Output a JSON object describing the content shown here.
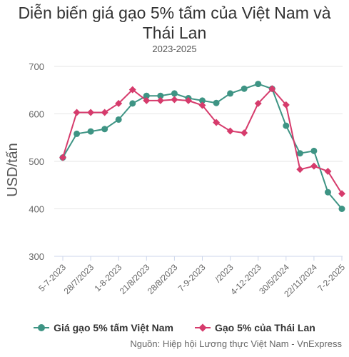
{
  "colors": {
    "series_vn": "#3e9484",
    "series_th": "#d63b6c",
    "grid": "#e6e6e6",
    "axis_text": "#666666"
  },
  "chart_data": {
    "type": "line",
    "title_line1": "Diễn biến giá gạo 5% tấm của Việt Nam và",
    "title_line2": "Thái Lan",
    "subtitle": "2023-2025",
    "xlabel": "",
    "ylabel": "USD/tấn",
    "ylim": [
      300,
      700
    ],
    "yticks": [
      300,
      400,
      500,
      600,
      700
    ],
    "grid": true,
    "legend_position": "bottom",
    "xtick_labels": [
      "5-7-2023",
      "28/7/2023",
      "1-8-2023",
      "21/8/2023",
      "28/8/2023",
      "7-9-2023",
      "/2023",
      "4-12-2023",
      "30/5/2024",
      "22/11/2024",
      "7-2-2025"
    ],
    "xtick_positions": [
      0,
      2,
      4,
      6,
      8,
      10,
      12,
      14,
      16,
      18,
      20
    ],
    "n_points": 21,
    "series": [
      {
        "name": "Giá gạo 5% tấm Việt Nam",
        "marker": "circle",
        "values": [
          508,
          558,
          563,
          568,
          588,
          622,
          638,
          638,
          643,
          633,
          628,
          623,
          643,
          653,
          663,
          653,
          575,
          517,
          522,
          435,
          400
        ]
      },
      {
        "name": "Gạo 5% của Thái Lan",
        "marker": "diamond",
        "values": [
          508,
          603,
          603,
          603,
          622,
          651,
          628,
          628,
          630,
          628,
          618,
          582,
          564,
          560,
          622,
          653,
          619,
          483,
          490,
          479,
          432
        ]
      }
    ]
  },
  "source": "Nguồn: Hiệp hội Lương thực Việt Nam - VnExpress"
}
